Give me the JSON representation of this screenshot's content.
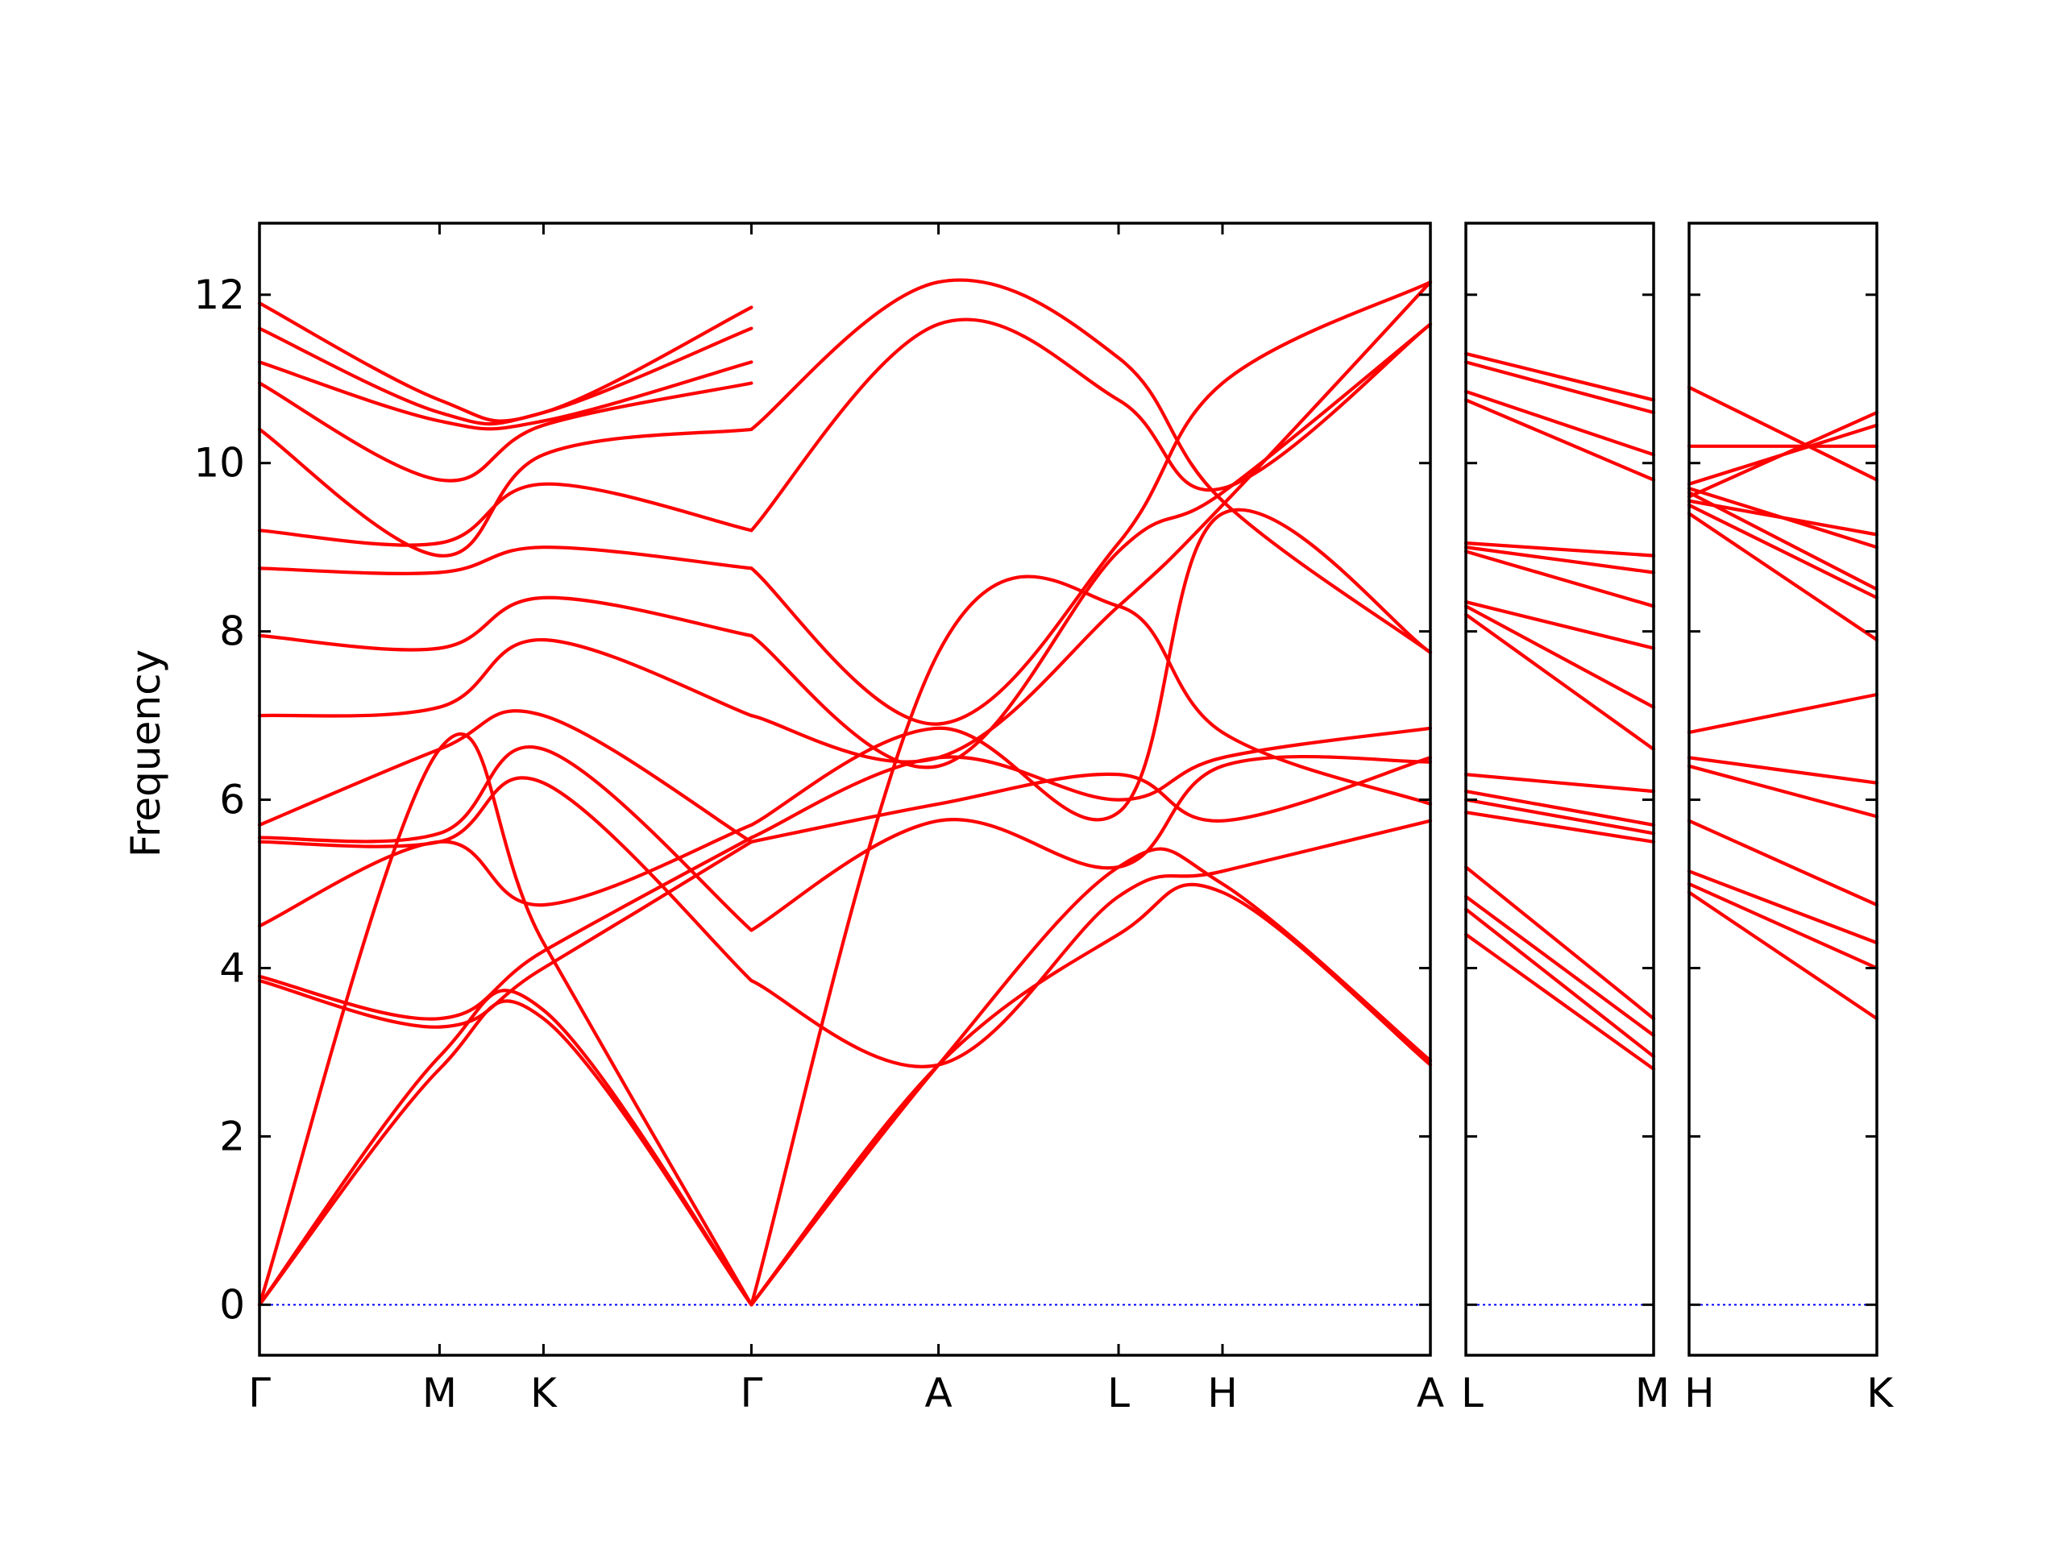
{
  "chart_data": {
    "type": "line",
    "ylabel": "Frequency",
    "ylim": [
      -0.6,
      12.85
    ],
    "yticks": [
      0,
      2,
      4,
      6,
      8,
      10,
      12
    ],
    "grid": false,
    "colors": {
      "bands": "#ff0000",
      "zero_line": "#0000ff",
      "axes": "#000000"
    },
    "panels": [
      {
        "id": "main",
        "xlabels": [
          "Γ",
          "M",
          "K",
          "Γ",
          "A",
          "L",
          "H",
          "A"
        ],
        "xpos": [
          0,
          0.5774,
          0.9107,
          1.5774,
          2.1774,
          2.7548,
          3.0881,
          3.7548
        ],
        "bands": [
          [
            [
              0,
              0
            ],
            [
              0.5774,
              2.8
            ],
            [
              0.9107,
              3.4
            ],
            [
              1.5774,
              0
            ]
          ],
          [
            [
              0,
              0
            ],
            [
              0.5774,
              2.95
            ],
            [
              0.9107,
              3.5
            ],
            [
              1.5774,
              0
            ]
          ],
          [
            [
              0,
              0
            ],
            [
              0.5774,
              6.6
            ],
            [
              0.9107,
              4.3
            ],
            [
              1.5774,
              0
            ]
          ],
          [
            [
              0,
              3.85
            ],
            [
              0.5774,
              3.3
            ],
            [
              0.9107,
              4.0
            ],
            [
              1.5774,
              5.5
            ]
          ],
          [
            [
              0,
              3.9
            ],
            [
              0.5774,
              3.4
            ],
            [
              0.9107,
              4.2
            ],
            [
              1.5774,
              5.55
            ]
          ],
          [
            [
              0,
              4.5
            ],
            [
              0.5774,
              5.5
            ],
            [
              0.9107,
              4.75
            ],
            [
              1.5774,
              5.7
            ]
          ],
          [
            [
              0,
              5.5
            ],
            [
              0.5774,
              5.5
            ],
            [
              0.9107,
              6.2
            ],
            [
              1.5774,
              3.85
            ]
          ],
          [
            [
              0,
              5.55
            ],
            [
              0.5774,
              5.6
            ],
            [
              0.9107,
              6.6
            ],
            [
              1.5774,
              4.45
            ]
          ],
          [
            [
              0,
              5.7
            ],
            [
              0.5774,
              6.6
            ],
            [
              0.9107,
              7.0
            ],
            [
              1.5774,
              5.5
            ]
          ],
          [
            [
              0,
              7.0
            ],
            [
              0.5774,
              7.1
            ],
            [
              0.9107,
              7.9
            ],
            [
              1.5774,
              7.0
            ]
          ],
          [
            [
              0,
              7.95
            ],
            [
              0.5774,
              7.8
            ],
            [
              0.9107,
              8.4
            ],
            [
              1.5774,
              7.95
            ]
          ],
          [
            [
              0,
              8.75
            ],
            [
              0.5774,
              8.7
            ],
            [
              0.9107,
              9.0
            ],
            [
              1.5774,
              8.75
            ]
          ],
          [
            [
              0,
              9.2
            ],
            [
              0.5774,
              9.05
            ],
            [
              0.9107,
              9.75
            ],
            [
              1.5774,
              9.2
            ]
          ],
          [
            [
              0,
              10.4
            ],
            [
              0.5774,
              8.9
            ],
            [
              0.9107,
              10.1
            ],
            [
              1.5774,
              10.4
            ]
          ],
          [
            [
              0,
              10.95
            ],
            [
              0.5774,
              9.8
            ],
            [
              0.9107,
              10.45
            ],
            [
              1.5774,
              10.95
            ]
          ],
          [
            [
              0,
              11.2
            ],
            [
              0.5774,
              10.5
            ],
            [
              0.9107,
              10.5
            ],
            [
              1.5774,
              11.2
            ]
          ],
          [
            [
              0,
              11.6
            ],
            [
              0.5774,
              10.6
            ],
            [
              0.9107,
              10.6
            ],
            [
              1.5774,
              11.6
            ]
          ],
          [
            [
              0,
              11.9
            ],
            [
              0.5774,
              10.75
            ],
            [
              0.9107,
              10.6
            ],
            [
              1.5774,
              11.85
            ]
          ],
          [
            [
              1.5774,
              0
            ],
            [
              2.1774,
              2.85
            ],
            [
              2.7548,
              4.4
            ],
            [
              3.0881,
              4.9
            ],
            [
              3.7548,
              2.85
            ]
          ],
          [
            [
              1.5774,
              0
            ],
            [
              2.1774,
              2.85
            ],
            [
              2.7548,
              5.2
            ],
            [
              3.0881,
              5.0
            ],
            [
              3.7548,
              2.9
            ]
          ],
          [
            [
              1.5774,
              0
            ],
            [
              2.1774,
              7.75
            ],
            [
              2.7548,
              8.3
            ],
            [
              3.0881,
              6.8
            ],
            [
              3.7548,
              5.95
            ]
          ],
          [
            [
              1.5774,
              3.85
            ],
            [
              2.1774,
              2.85
            ],
            [
              2.7548,
              4.85
            ],
            [
              3.0881,
              5.15
            ],
            [
              3.7548,
              5.75
            ]
          ],
          [
            [
              1.5774,
              4.45
            ],
            [
              2.1774,
              5.75
            ],
            [
              2.7548,
              5.2
            ],
            [
              3.0881,
              6.4
            ],
            [
              3.7548,
              6.45
            ]
          ],
          [
            [
              1.5774,
              5.5
            ],
            [
              2.1774,
              5.95
            ],
            [
              2.7548,
              6.3
            ],
            [
              3.0881,
              5.75
            ],
            [
              3.7548,
              6.5
            ]
          ],
          [
            [
              1.5774,
              5.55
            ],
            [
              2.1774,
              6.5
            ],
            [
              2.7548,
              6.0
            ],
            [
              3.0881,
              6.5
            ],
            [
              3.7548,
              6.85
            ]
          ],
          [
            [
              1.5774,
              5.7
            ],
            [
              2.1774,
              6.85
            ],
            [
              2.7548,
              5.85
            ],
            [
              3.0881,
              9.4
            ],
            [
              3.7548,
              7.75
            ]
          ],
          [
            [
              1.5774,
              7.0
            ],
            [
              2.1774,
              6.5
            ],
            [
              2.7548,
              8.3
            ],
            [
              3.0881,
              9.5
            ],
            [
              3.7548,
              12.15
            ]
          ],
          [
            [
              1.5774,
              7.95
            ],
            [
              2.1774,
              6.4
            ],
            [
              2.7548,
              8.95
            ],
            [
              3.0881,
              9.65
            ],
            [
              3.7548,
              11.65
            ]
          ],
          [
            [
              1.5774,
              8.75
            ],
            [
              2.1774,
              6.9
            ],
            [
              2.7548,
              9.05
            ],
            [
              3.0881,
              10.95
            ],
            [
              3.7548,
              12.15
            ]
          ],
          [
            [
              1.5774,
              9.2
            ],
            [
              2.1774,
              11.65
            ],
            [
              2.7548,
              10.75
            ],
            [
              3.0881,
              9.7
            ],
            [
              3.7548,
              11.65
            ]
          ],
          [
            [
              1.5774,
              10.4
            ],
            [
              2.1774,
              12.15
            ],
            [
              2.7548,
              11.25
            ],
            [
              3.0881,
              9.55
            ],
            [
              3.7548,
              7.75
            ]
          ]
        ]
      },
      {
        "id": "L-M",
        "xlabels": [
          "L",
          "M"
        ],
        "xpos": [
          0,
          0.5774
        ],
        "bands": [
          [
            [
              0,
              4.4
            ],
            [
              0.5774,
              2.8
            ]
          ],
          [
            [
              0,
              4.7
            ],
            [
              0.5774,
              2.95
            ]
          ],
          [
            [
              0,
              4.85
            ],
            [
              0.5774,
              3.2
            ]
          ],
          [
            [
              0,
              5.2
            ],
            [
              0.5774,
              3.4
            ]
          ],
          [
            [
              0,
              5.85
            ],
            [
              0.5774,
              5.5
            ]
          ],
          [
            [
              0,
              6.0
            ],
            [
              0.5774,
              5.6
            ]
          ],
          [
            [
              0,
              6.1
            ],
            [
              0.5774,
              5.7
            ]
          ],
          [
            [
              0,
              6.3
            ],
            [
              0.5774,
              6.1
            ]
          ],
          [
            [
              0,
              8.2
            ],
            [
              0.5774,
              6.6
            ]
          ],
          [
            [
              0,
              8.3
            ],
            [
              0.5774,
              7.1
            ]
          ],
          [
            [
              0,
              8.35
            ],
            [
              0.5774,
              7.8
            ]
          ],
          [
            [
              0,
              8.95
            ],
            [
              0.5774,
              8.3
            ]
          ],
          [
            [
              0,
              9.0
            ],
            [
              0.5774,
              8.7
            ]
          ],
          [
            [
              0,
              9.05
            ],
            [
              0.5774,
              8.9
            ]
          ],
          [
            [
              0,
              10.75
            ],
            [
              0.5774,
              9.8
            ]
          ],
          [
            [
              0,
              10.85
            ],
            [
              0.5774,
              10.1
            ]
          ],
          [
            [
              0,
              11.2
            ],
            [
              0.5774,
              10.6
            ]
          ],
          [
            [
              0,
              11.3
            ],
            [
              0.5774,
              10.75
            ]
          ]
        ]
      },
      {
        "id": "H-K",
        "xlabels": [
          "H",
          "K"
        ],
        "xpos": [
          0,
          0.5774
        ],
        "bands": [
          [
            [
              0,
              4.9
            ],
            [
              0.5774,
              3.4
            ]
          ],
          [
            [
              0,
              5.0
            ],
            [
              0.5774,
              4.0
            ]
          ],
          [
            [
              0,
              5.15
            ],
            [
              0.5774,
              4.3
            ]
          ],
          [
            [
              0,
              5.75
            ],
            [
              0.5774,
              4.75
            ]
          ],
          [
            [
              0,
              6.4
            ],
            [
              0.5774,
              5.8
            ]
          ],
          [
            [
              0,
              6.5
            ],
            [
              0.5774,
              6.2
            ]
          ],
          [
            [
              0,
              6.8
            ],
            [
              0.5774,
              7.25
            ]
          ],
          [
            [
              0,
              9.4
            ],
            [
              0.5774,
              7.9
            ]
          ],
          [
            [
              0,
              9.5
            ],
            [
              0.5774,
              8.4
            ]
          ],
          [
            [
              0,
              9.65
            ],
            [
              0.5774,
              8.5
            ]
          ],
          [
            [
              0,
              9.7
            ],
            [
              0.5774,
              9.0
            ]
          ],
          [
            [
              0,
              9.55
            ],
            [
              0.5774,
              9.15
            ]
          ],
          [
            [
              0,
              10.9
            ],
            [
              0.5774,
              9.8
            ]
          ],
          [
            [
              0,
              10.2
            ],
            [
              0.5774,
              10.2
            ]
          ],
          [
            [
              0,
              9.75
            ],
            [
              0.5774,
              10.45
            ]
          ],
          [
            [
              0,
              9.6
            ],
            [
              0.5774,
              10.6
            ]
          ]
        ]
      }
    ]
  }
}
